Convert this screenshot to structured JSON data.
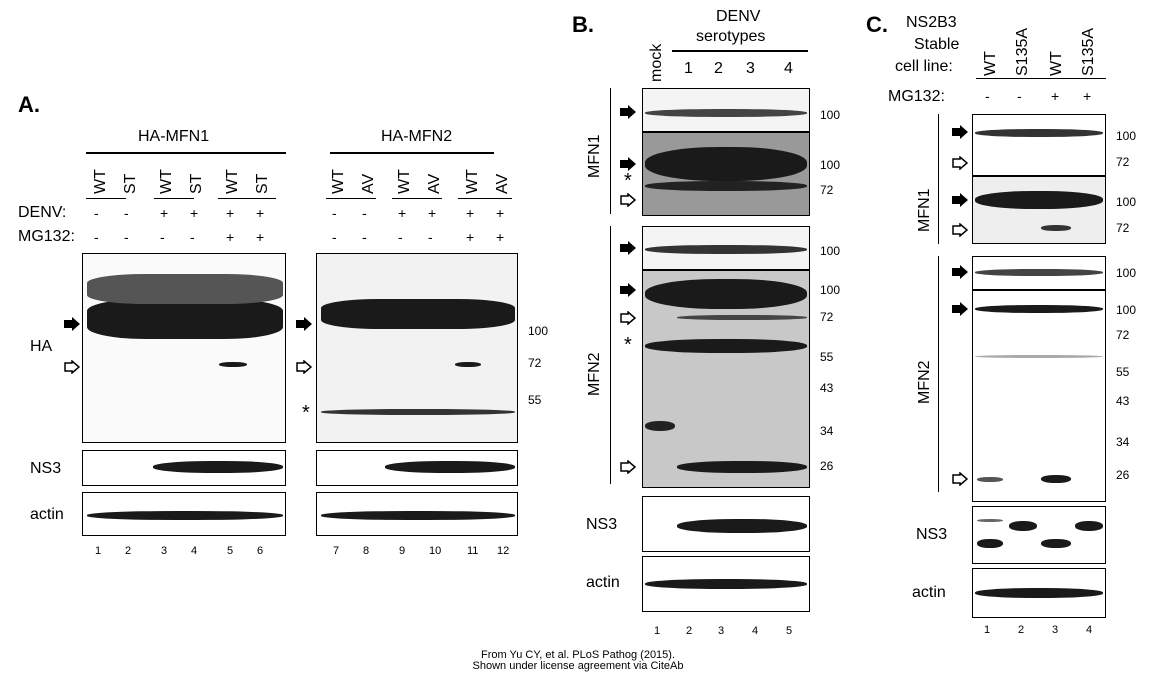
{
  "panelA": {
    "label": "A.",
    "group1_title": "HA-MFN1",
    "group2_title": "HA-MFN2",
    "group1_lanes": [
      "WT",
      "ST",
      "WT",
      "ST",
      "WT",
      "ST"
    ],
    "group2_lanes": [
      "WT",
      "AV",
      "WT",
      "AV",
      "WT",
      "AV"
    ],
    "denv_label": "DENV:",
    "mg132_label": "MG132:",
    "denv": [
      "-",
      "-",
      "+",
      "+",
      "+",
      "+",
      "-",
      "-",
      "+",
      "+",
      "+",
      "+"
    ],
    "mg132": [
      "-",
      "-",
      "-",
      "-",
      "+",
      "+",
      "-",
      "-",
      "-",
      "-",
      "+",
      "+"
    ],
    "row_labels": [
      "HA",
      "NS3",
      "actin"
    ],
    "mw": [
      "100",
      "72",
      "55"
    ],
    "lane_numbers": [
      "1",
      "2",
      "3",
      "4",
      "5",
      "6",
      "7",
      "8",
      "9",
      "10",
      "11",
      "12"
    ],
    "asterisk": "*"
  },
  "panelB": {
    "label": "B.",
    "mock_label": "mock",
    "denv_title": "DENV",
    "serotypes_title": "serotypes",
    "serotypes": [
      "1",
      "2",
      "3",
      "4"
    ],
    "row_labels": [
      "MFN1",
      "MFN2",
      "NS3",
      "actin"
    ],
    "mw_mfn1": [
      "100",
      "100",
      "72"
    ],
    "mw_mfn2": [
      "100",
      "100",
      "72",
      "55",
      "43",
      "34",
      "26"
    ],
    "lane_numbers": [
      "1",
      "2",
      "3",
      "4",
      "5"
    ],
    "asterisk": "*"
  },
  "panelC": {
    "label": "C.",
    "cellline_title": [
      "NS2B3",
      "Stable",
      "cell line:"
    ],
    "lanes": [
      "WT",
      "S135A",
      "WT",
      "S135A"
    ],
    "mg132_label": "MG132:",
    "mg132": [
      "-",
      "-",
      "+",
      "+"
    ],
    "row_labels": [
      "MFN1",
      "MFN2",
      "NS3",
      "actin"
    ],
    "mw_mfn1": [
      "100",
      "72",
      "100",
      "72"
    ],
    "mw_mfn2": [
      "100",
      "100",
      "72",
      "55",
      "43",
      "34",
      "26"
    ],
    "lane_numbers": [
      "1",
      "2",
      "3",
      "4"
    ]
  },
  "credit": [
    "From Yu CY, et al. PLoS Pathog (2015).",
    "Shown under license agreement via CiteAb"
  ]
}
